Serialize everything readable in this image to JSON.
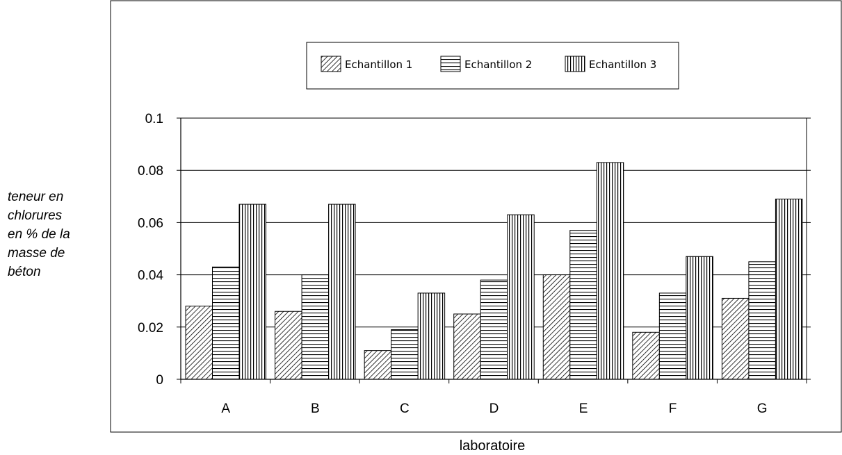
{
  "chart_data": {
    "type": "bar",
    "title": "",
    "xlabel": "laboratoire",
    "ylabel_lines": [
      "teneur en",
      "chlorures",
      "en % de la",
      "masse de",
      "béton"
    ],
    "categories": [
      "A",
      "B",
      "C",
      "D",
      "E",
      "F",
      "G"
    ],
    "series": [
      {
        "name": "Echantillon 1",
        "pattern": "diagonal-hatch",
        "values": [
          0.028,
          0.026,
          0.011,
          0.025,
          0.04,
          0.018,
          0.031
        ]
      },
      {
        "name": "Echantillon 2",
        "pattern": "horizontal-hatch",
        "values": [
          0.043,
          0.04,
          0.019,
          0.038,
          0.057,
          0.033,
          0.045
        ]
      },
      {
        "name": "Echantillon 3",
        "pattern": "vertical-hatch",
        "values": [
          0.067,
          0.067,
          0.033,
          0.063,
          0.083,
          0.047,
          0.069
        ]
      }
    ],
    "yticks": [
      "0",
      "0.02",
      "0.04",
      "0.06",
      "0.08",
      "0.1"
    ],
    "ylim": [
      0,
      0.1
    ],
    "grid": true,
    "legend_position": "top-center"
  },
  "colors": {
    "ink": "#000000",
    "background": "#ffffff"
  }
}
